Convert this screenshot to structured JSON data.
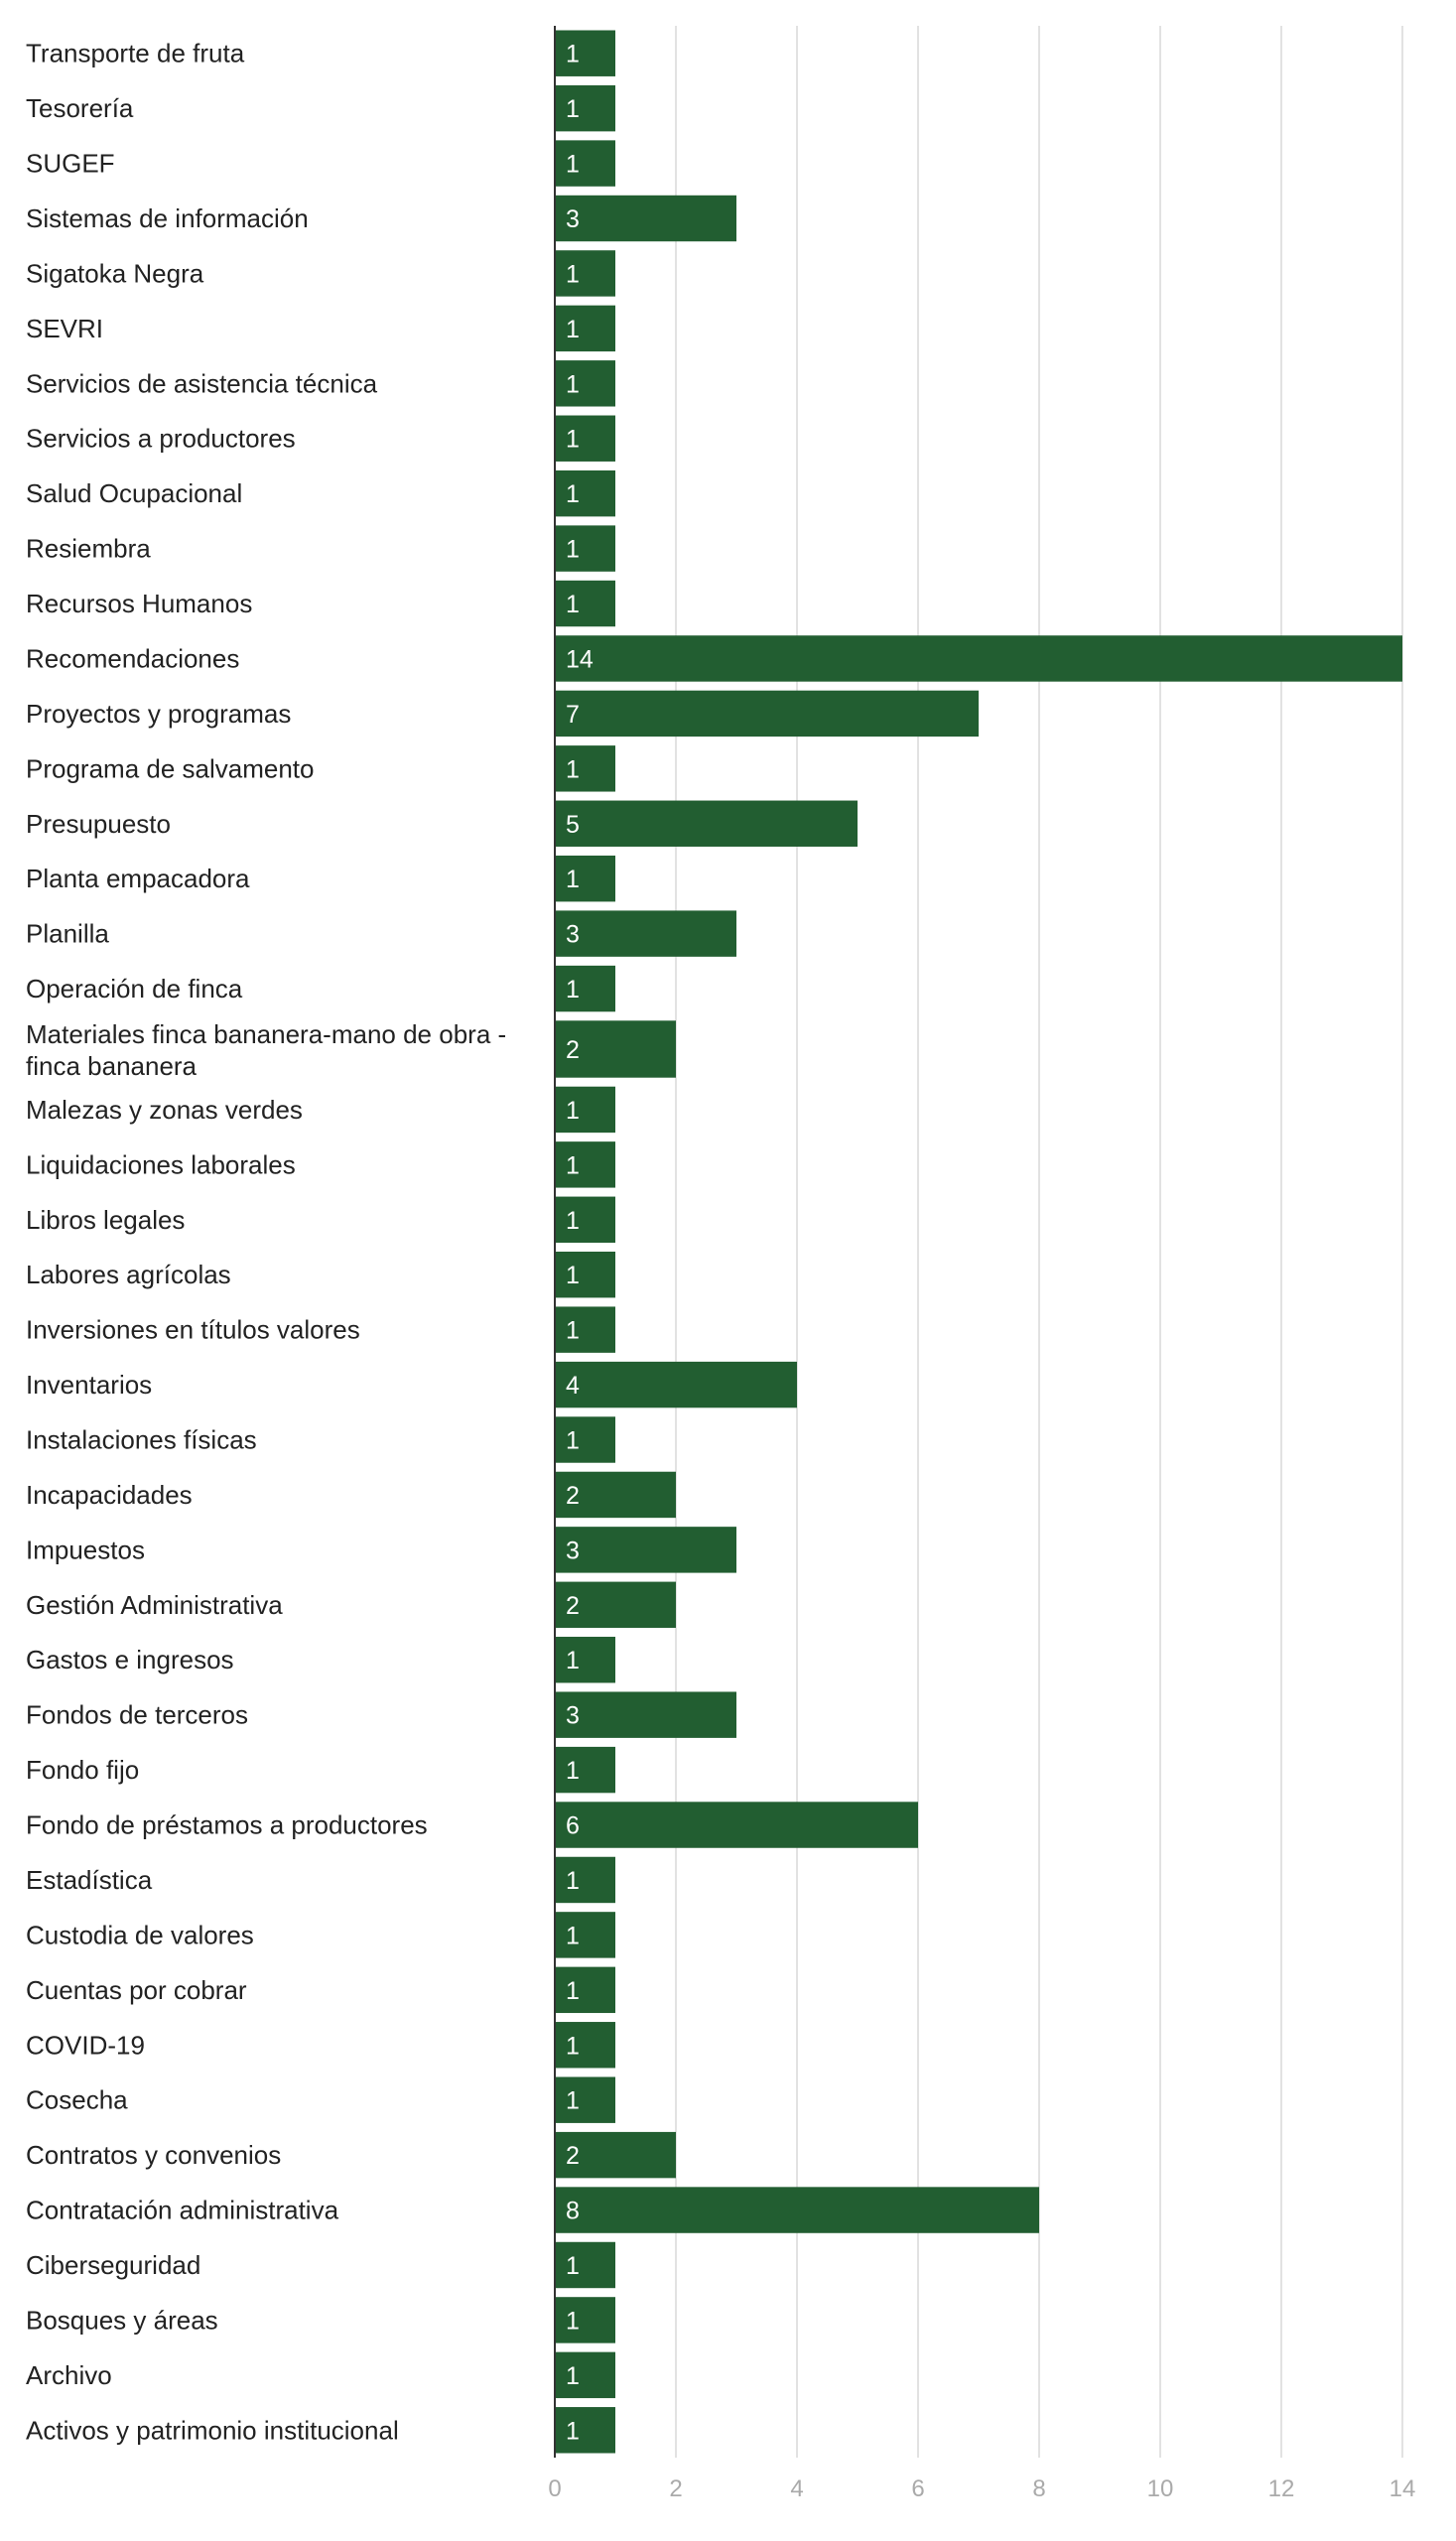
{
  "chart_data": {
    "type": "bar",
    "orientation": "horizontal",
    "title": "",
    "xlabel": "",
    "ylabel": "",
    "xlim": [
      0,
      14
    ],
    "xticks": [
      0,
      2,
      4,
      6,
      8,
      10,
      12,
      14
    ],
    "grid": true,
    "bar_color": "#225e31",
    "categories": [
      "Transporte de fruta",
      "Tesorería",
      "SUGEF",
      "Sistemas de información",
      "Sigatoka Negra",
      "SEVRI",
      "Servicios de asistencia técnica",
      "Servicios a productores",
      "Salud Ocupacional",
      "Resiembra",
      "Recursos Humanos",
      "Recomendaciones",
      "Proyectos y programas",
      "Programa de salvamento",
      "Presupuesto",
      "Planta empacadora",
      "Planilla",
      "Operación de finca",
      "Materiales finca bananera-mano de obra - finca bananera",
      "Malezas y zonas verdes",
      "Liquidaciones laborales",
      "Libros legales",
      "Labores agrícolas",
      "Inversiones en títulos valores",
      "Inventarios",
      "Instalaciones físicas",
      "Incapacidades",
      "Impuestos",
      "Gestión Administrativa",
      "Gastos e ingresos",
      "Fondos de terceros",
      "Fondo fijo",
      "Fondo de préstamos a productores",
      "Estadística",
      "Custodia de valores",
      "Cuentas por cobrar",
      "COVID-19",
      "Cosecha",
      "Contratos y convenios",
      "Contratación administrativa",
      "Ciberseguridad",
      "Bosques y áreas",
      "Archivo",
      "Activos y patrimonio institucional"
    ],
    "values": [
      1,
      1,
      1,
      3,
      1,
      1,
      1,
      1,
      1,
      1,
      1,
      14,
      7,
      1,
      5,
      1,
      3,
      1,
      2,
      1,
      1,
      1,
      1,
      1,
      4,
      1,
      2,
      3,
      2,
      1,
      3,
      1,
      6,
      1,
      1,
      1,
      1,
      1,
      2,
      8,
      1,
      1,
      1,
      1
    ]
  }
}
